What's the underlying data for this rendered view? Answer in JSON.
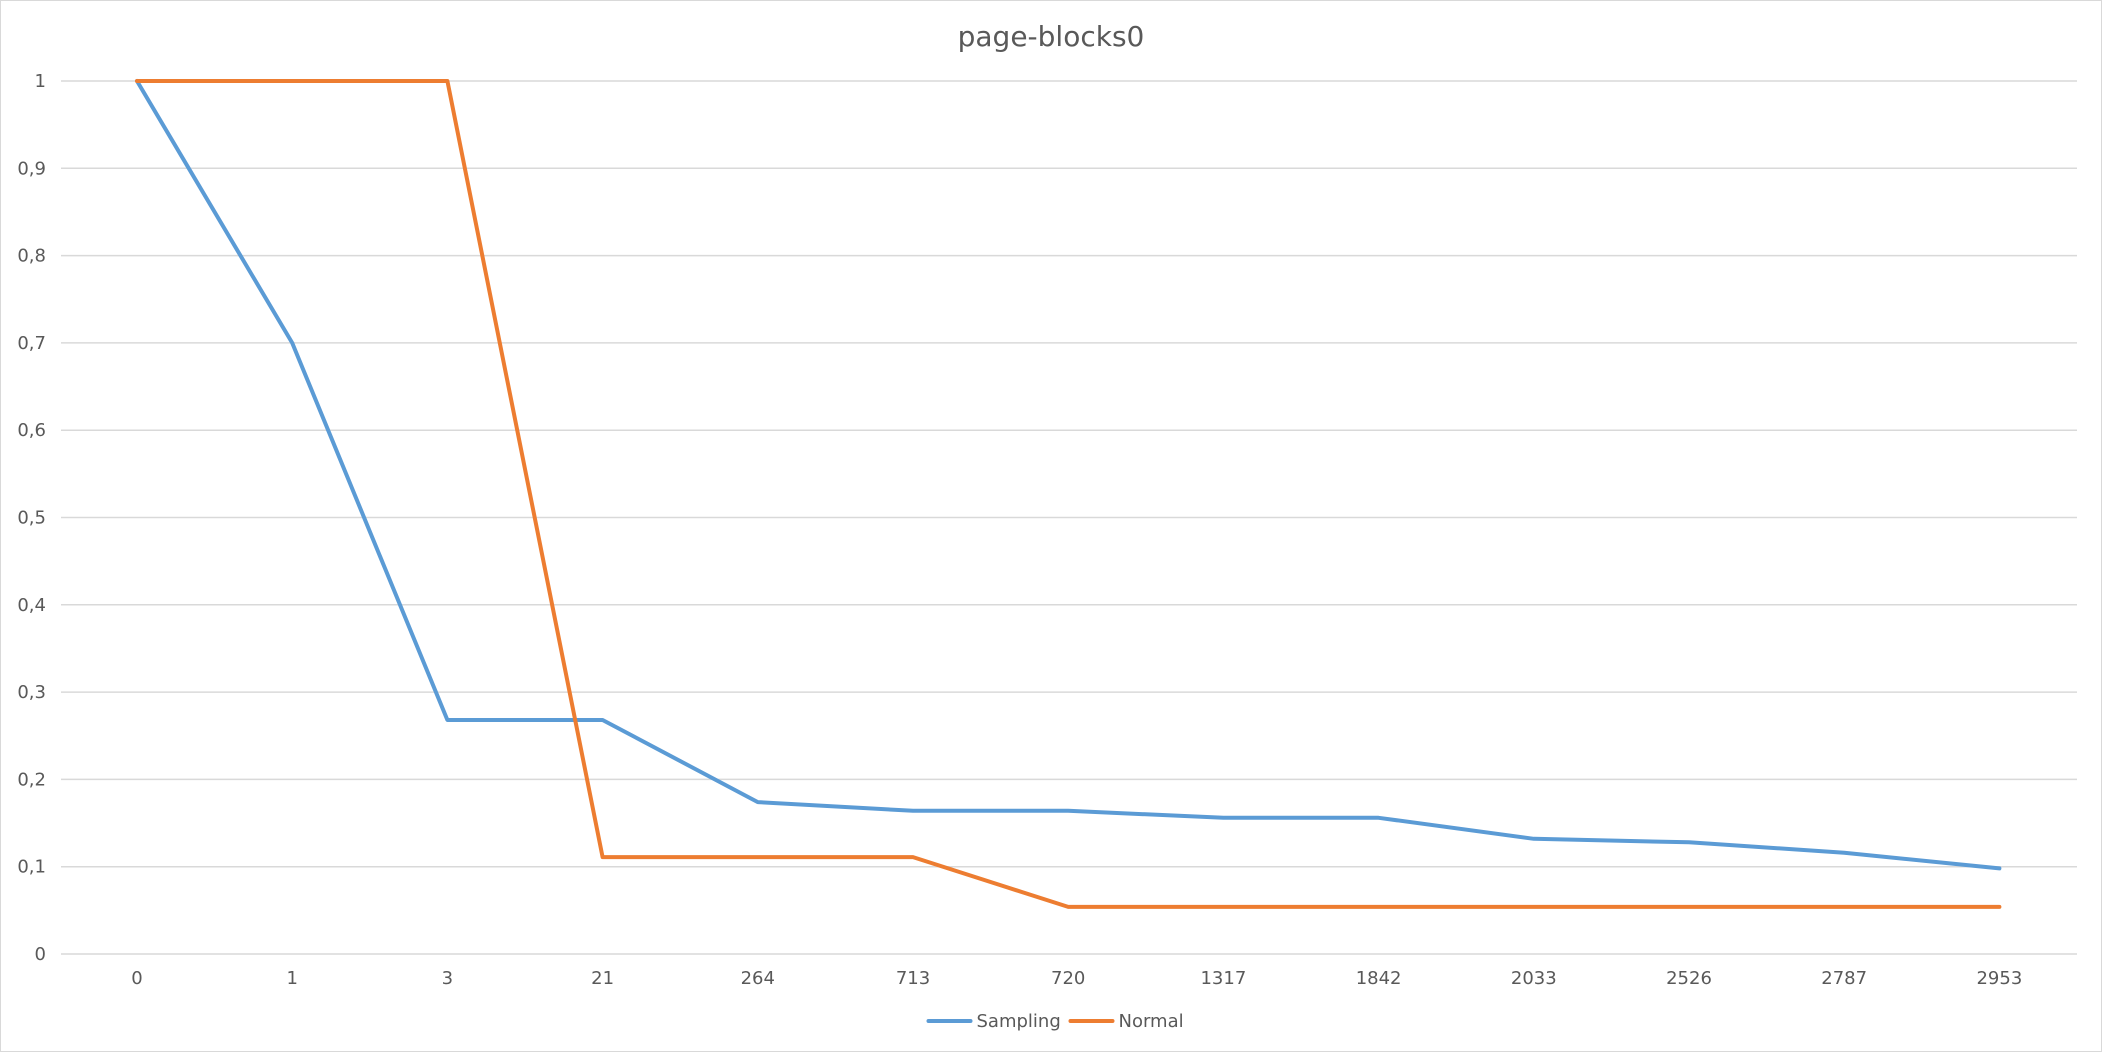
{
  "chart_data": {
    "type": "line",
    "title": "page-blocks0",
    "xlabel": "",
    "ylabel": "",
    "categories": [
      "0",
      "1",
      "3",
      "21",
      "264",
      "713",
      "720",
      "1317",
      "1842",
      "2033",
      "2526",
      "2787",
      "2953"
    ],
    "y_ticks": [
      "0",
      "0,1",
      "0,2",
      "0,3",
      "0,4",
      "0,5",
      "0,6",
      "0,7",
      "0,8",
      "0,9",
      "1"
    ],
    "ylim": [
      0,
      1
    ],
    "grid": true,
    "legend_position": "bottom",
    "series": [
      {
        "name": "Sampling",
        "color": "#5b9bd5",
        "values": [
          1.0,
          0.7,
          0.268,
          0.268,
          0.174,
          0.164,
          0.164,
          0.156,
          0.156,
          0.132,
          0.128,
          0.116,
          0.098
        ]
      },
      {
        "name": "Normal",
        "color": "#ed7d31",
        "values": [
          1.0,
          1.0,
          1.0,
          0.111,
          0.111,
          0.111,
          0.054,
          0.054,
          0.054,
          0.054,
          0.054,
          0.054,
          0.054
        ]
      }
    ]
  }
}
